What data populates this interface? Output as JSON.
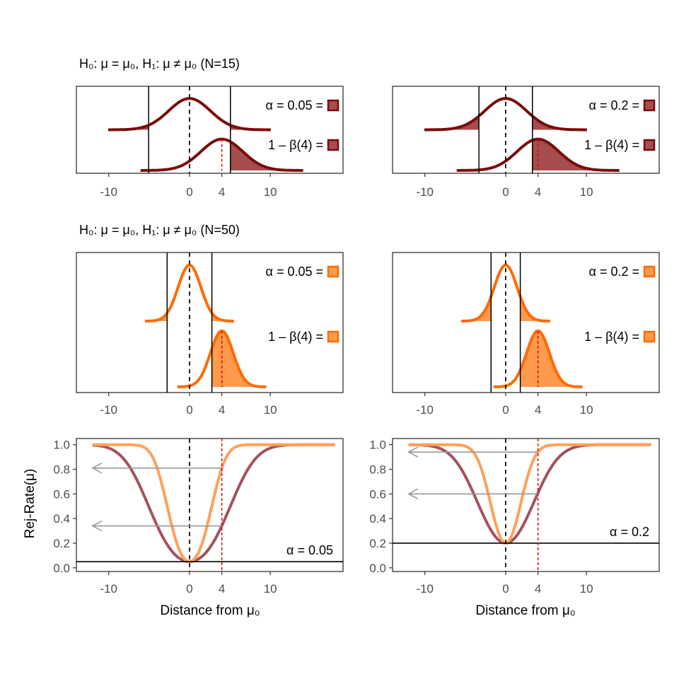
{
  "figure": {
    "rows": [
      {
        "title": "H₀: μ = μ₀,  H₁: μ ≠ μ₀   (N=15)"
      },
      {
        "title": "H₀: μ = μ₀,  H₁: μ ≠ μ₀   (N=50)"
      }
    ],
    "colors": {
      "n15": "#7a0b0b",
      "n15_fill": "#a64d4d",
      "n50": "#ff6a00",
      "n50_fill": "#ff9a4d",
      "power_n15": "#a3525e",
      "power_n50": "#ffa05a",
      "red_line": "#e00000",
      "arrow": "#999999"
    },
    "legend": {
      "power_label": "1 – β(4) ="
    },
    "x_ticks": [
      "-10",
      "0",
      "4",
      "10"
    ],
    "y_ticks": [
      "0.0",
      "0.2",
      "0.4",
      "0.6",
      "0.8",
      "1.0"
    ],
    "ylabel": "Rej-Rate(μ)",
    "xlabel": "Distance from μ₀"
  },
  "chart_data": [
    {
      "type": "area",
      "panel": "N=15, alpha=0.05",
      "n": 15,
      "alpha": 0.05,
      "alpha_label": "α = 0.05 =",
      "null_mean": 0,
      "alt_mean": 4,
      "sd": 2.58,
      "critical_values": [
        -5.06,
        5.06
      ],
      "xlim": [
        -14,
        19
      ],
      "legend": [
        "α = 0.05 =",
        "1 – β(4) ="
      ]
    },
    {
      "type": "area",
      "panel": "N=15, alpha=0.2",
      "n": 15,
      "alpha": 0.2,
      "alpha_label": "α = 0.2 =",
      "null_mean": 0,
      "alt_mean": 4,
      "sd": 2.58,
      "critical_values": [
        -3.31,
        3.31
      ],
      "xlim": [
        -14,
        19
      ],
      "legend": [
        "α = 0.2 =",
        "1 – β(4) ="
      ]
    },
    {
      "type": "area",
      "panel": "N=50, alpha=0.05",
      "n": 50,
      "alpha": 0.05,
      "alpha_label": "α = 0.05 =",
      "null_mean": 0,
      "alt_mean": 4,
      "sd": 1.41,
      "critical_values": [
        -2.77,
        2.77
      ],
      "xlim": [
        -14,
        19
      ],
      "legend": [
        "α = 0.05 =",
        "1 – β(4) ="
      ]
    },
    {
      "type": "area",
      "panel": "N=50, alpha=0.2",
      "n": 50,
      "alpha": 0.2,
      "alpha_label": "α = 0.2 =",
      "null_mean": 0,
      "alt_mean": 4,
      "sd": 1.41,
      "critical_values": [
        -1.81,
        1.81
      ],
      "xlim": [
        -14,
        19
      ],
      "legend": [
        "α = 0.2 =",
        "1 – β(4) ="
      ]
    },
    {
      "type": "line",
      "panel": "power, alpha=0.05",
      "alpha": 0.05,
      "alpha_label": "α = 0.05",
      "xlabel": "Distance from μ₀",
      "ylabel": "Rej-Rate(μ)",
      "xlim": [
        -14,
        19
      ],
      "ylim": [
        -0.03,
        1.05
      ],
      "series": [
        {
          "sd": 2.58,
          "power_at_4": 0.34
        },
        {
          "sd": 1.41,
          "power_at_4": 0.81
        }
      ]
    },
    {
      "type": "line",
      "panel": "power, alpha=0.2",
      "alpha": 0.2,
      "alpha_label": "α = 0.2",
      "xlabel": "Distance from μ₀",
      "ylabel": "Rej-Rate(μ)",
      "xlim": [
        -14,
        19
      ],
      "ylim": [
        -0.03,
        1.05
      ],
      "series": [
        {
          "sd": 2.58,
          "power_at_4": 0.6
        },
        {
          "sd": 1.41,
          "power_at_4": 0.94
        }
      ]
    }
  ]
}
